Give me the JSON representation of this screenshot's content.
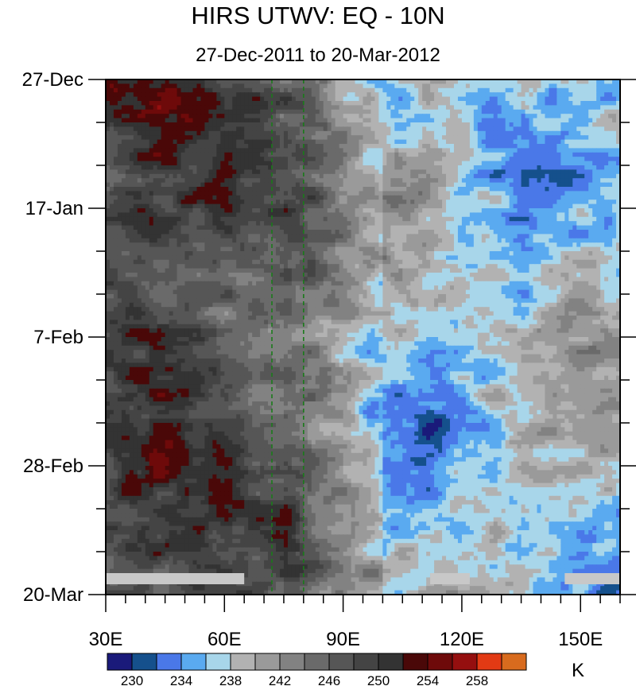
{
  "chart_data": {
    "type": "heatmap",
    "title": "HIRS UTWV: EQ - 10N",
    "subtitle": "27-Dec-2011 to 20-Mar-2012",
    "xlabel": "",
    "ylabel": "",
    "x_ticks": [
      {
        "value": 30,
        "label": "30E"
      },
      {
        "value": 60,
        "label": "60E"
      },
      {
        "value": 90,
        "label": "90E"
      },
      {
        "value": 120,
        "label": "120E"
      },
      {
        "value": 150,
        "label": "150E"
      }
    ],
    "xlim": [
      30,
      160
    ],
    "y_ticks": [
      {
        "value": 0,
        "label": "27-Dec"
      },
      {
        "value": 21,
        "label": "17-Jan"
      },
      {
        "value": 42,
        "label": "7-Feb"
      },
      {
        "value": 63,
        "label": "28-Feb"
      },
      {
        "value": 84,
        "label": "20-Mar"
      }
    ],
    "ylim_days": [
      0,
      84
    ],
    "reference_lines": [
      {
        "x": 72,
        "style": "dashed",
        "color": "#1a7a1a"
      },
      {
        "x": 80,
        "style": "dashed",
        "color": "#1a7a1a"
      }
    ],
    "colorbar": {
      "units": "K",
      "levels": [
        230,
        232,
        234,
        236,
        238,
        240,
        242,
        244,
        246,
        248,
        250,
        252,
        254,
        256,
        258
      ],
      "tick_labels": [
        "230",
        "234",
        "238",
        "242",
        "246",
        "250",
        "254",
        "258"
      ],
      "colors": [
        "#1a1a7a",
        "#15508c",
        "#4a78e8",
        "#5aaaf0",
        "#a8d6ea",
        "#b2b2b2",
        "#9a9a9a",
        "#828282",
        "#6a6a6a",
        "#565656",
        "#444444",
        "#333333",
        "#4a0808",
        "#6e0a0a",
        "#950f0f",
        "#e23a14",
        "#d86b1e"
      ]
    },
    "missing_color": "#c8c8c8"
  }
}
